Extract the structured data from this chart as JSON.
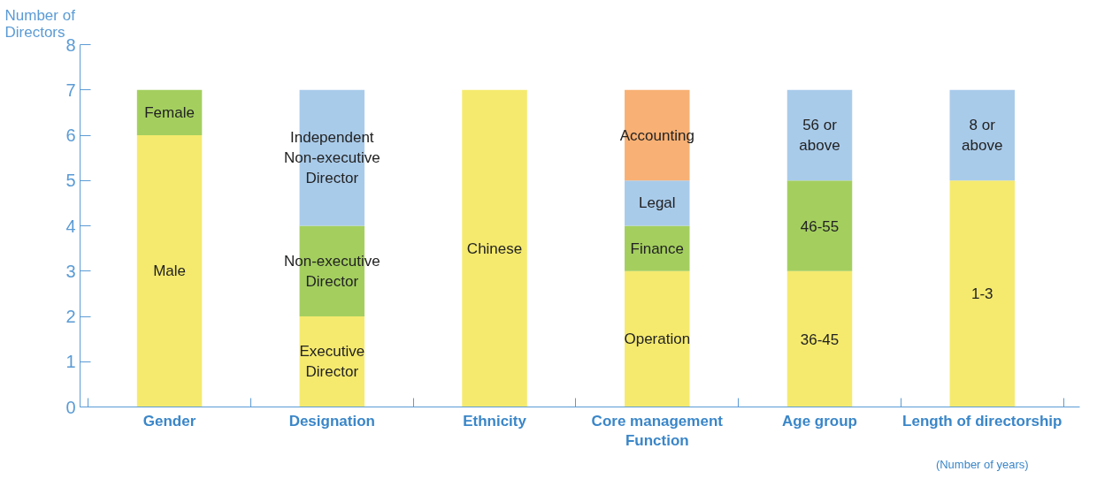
{
  "chart_data": {
    "type": "bar",
    "stacked": true,
    "ylabel": "Number of\nDirectors",
    "categories": [
      "Gender",
      "Designation",
      "Ethnicity",
      "Core management\nFunction",
      "Age group",
      "Length of directorship"
    ],
    "annotations": [
      "(Number of years)"
    ],
    "ylim": [
      0,
      8
    ],
    "yticks": [
      0,
      1,
      2,
      3,
      4,
      5,
      6,
      7,
      8
    ],
    "grid": false,
    "legend": false,
    "series": [
      {
        "name": "Male",
        "color": "#f5ea6e",
        "values": [
          6,
          null,
          null,
          null,
          null,
          null
        ]
      },
      {
        "name": "Female",
        "color": "#a4cf5f",
        "values": [
          1,
          null,
          null,
          null,
          null,
          null
        ]
      },
      {
        "name": "Executive\nDirector",
        "color": "#f5ea6e",
        "values": [
          null,
          2,
          null,
          null,
          null,
          null
        ]
      },
      {
        "name": "Non-executive\nDirector",
        "color": "#a4cf5f",
        "values": [
          null,
          2,
          null,
          null,
          null,
          null
        ]
      },
      {
        "name": "Independent\nNon-executive\nDirector",
        "color": "#a9cbea",
        "values": [
          null,
          3,
          null,
          null,
          null,
          null
        ]
      },
      {
        "name": "Chinese",
        "color": "#f5ea6e",
        "values": [
          null,
          null,
          7,
          null,
          null,
          null
        ]
      },
      {
        "name": "Operation",
        "color": "#f5ea6e",
        "values": [
          null,
          null,
          null,
          3,
          null,
          null
        ]
      },
      {
        "name": "Finance",
        "color": "#a4cf5f",
        "values": [
          null,
          null,
          null,
          1,
          null,
          null
        ]
      },
      {
        "name": "Legal",
        "color": "#a9cbea",
        "values": [
          null,
          null,
          null,
          1,
          null,
          null
        ]
      },
      {
        "name": "Accounting",
        "color": "#f8b074",
        "values": [
          null,
          null,
          null,
          2,
          null,
          null
        ]
      },
      {
        "name": "36-45",
        "color": "#f5ea6e",
        "values": [
          null,
          null,
          null,
          null,
          3,
          null
        ]
      },
      {
        "name": "46-55",
        "color": "#a4cf5f",
        "values": [
          null,
          null,
          null,
          null,
          2,
          null
        ]
      },
      {
        "name": "56 or\nabove",
        "color": "#a9cbea",
        "values": [
          null,
          null,
          null,
          null,
          2,
          null
        ]
      },
      {
        "name": "1-3",
        "color": "#f5ea6e",
        "values": [
          null,
          null,
          null,
          null,
          null,
          5
        ]
      },
      {
        "name": "8 or\nabove",
        "color": "#a9cbea",
        "values": [
          null,
          null,
          null,
          null,
          null,
          2
        ]
      }
    ]
  }
}
